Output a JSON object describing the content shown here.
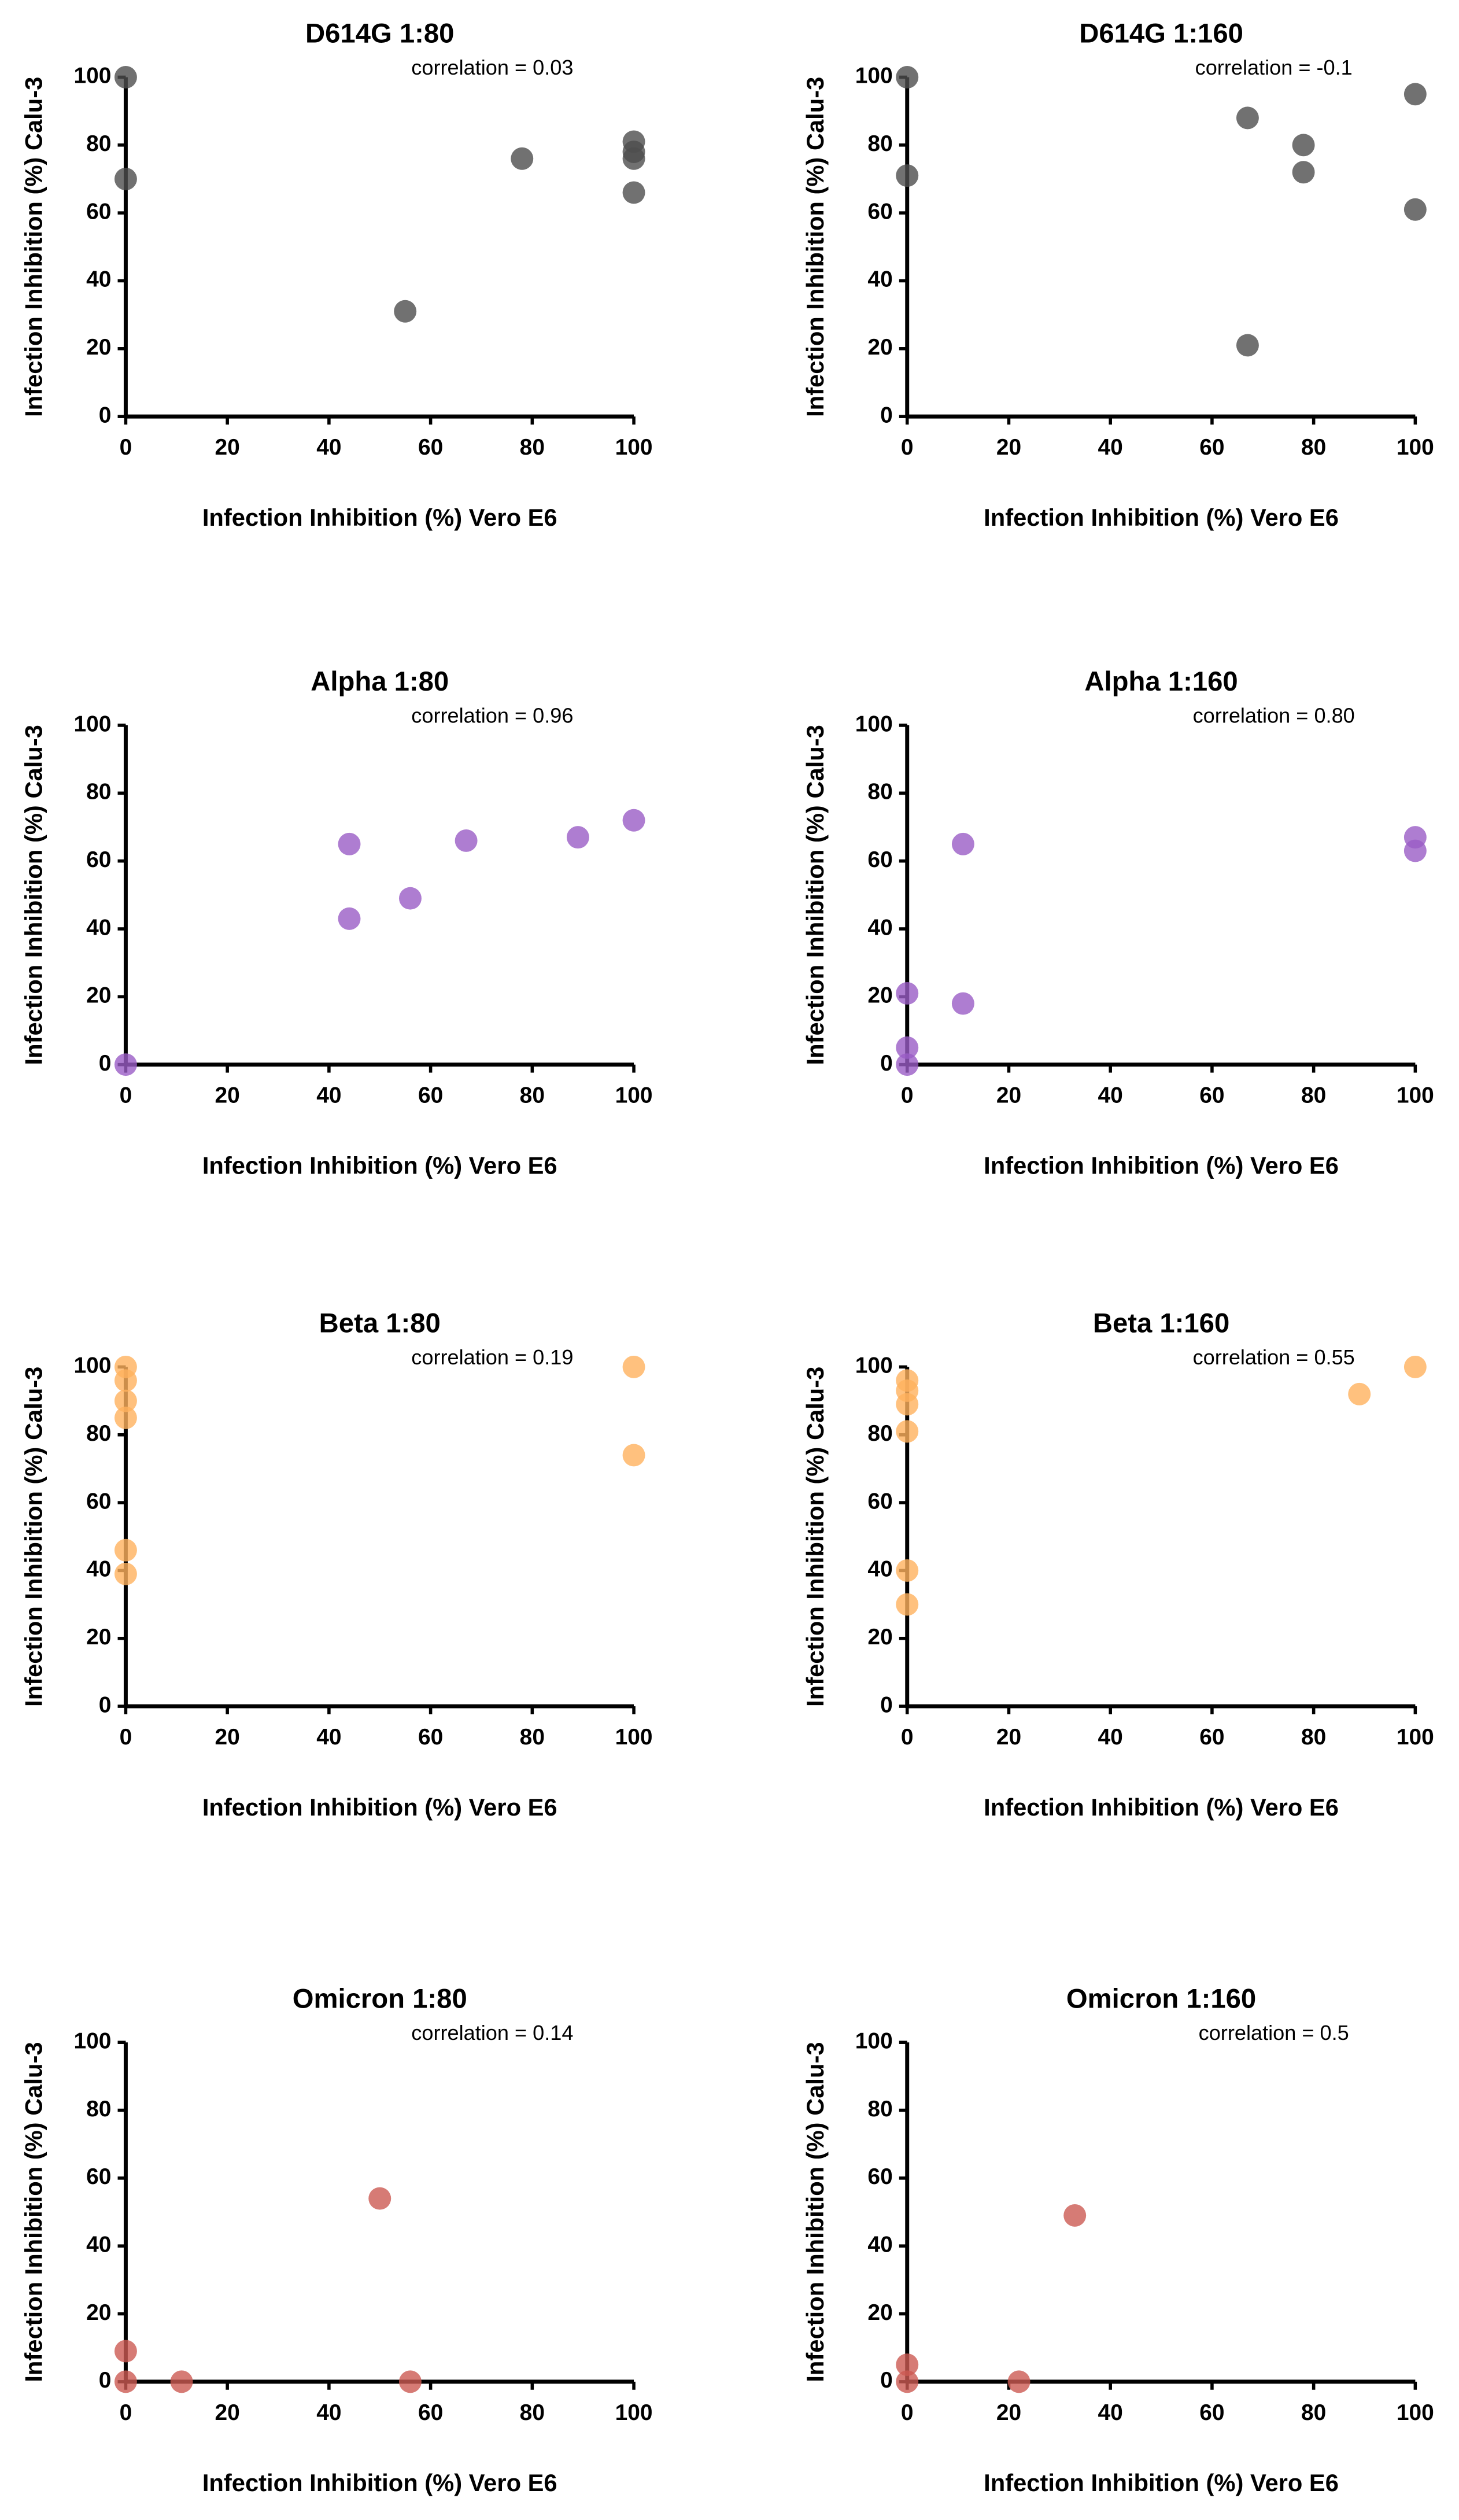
{
  "chart_data": [
    {
      "type": "scatter",
      "title": "D614G 1:80",
      "annotation": "correlation = 0.03",
      "x_label": "Infection Inhibition (%) Vero E6",
      "y_label": "Infection Inhibition (%) Calu-3",
      "xlim": [
        0,
        100
      ],
      "ylim": [
        0,
        100
      ],
      "xticks": [
        0,
        20,
        40,
        60,
        80,
        100
      ],
      "yticks": [
        0,
        20,
        40,
        60,
        80,
        100
      ],
      "series": [
        {
          "color": "#4d4d4d",
          "x": [
            0,
            0,
            55,
            78,
            100,
            100,
            100,
            100
          ],
          "values": [
            100,
            70,
            31,
            76,
            81,
            78,
            76,
            66
          ]
        }
      ]
    },
    {
      "type": "scatter",
      "title": "D614G 1:160",
      "annotation": "correlation = -0.1",
      "x_label": "Infection Inhibition (%) Vero E6",
      "y_label": "Infection Inhibition (%) Calu-3",
      "xlim": [
        0,
        100
      ],
      "ylim": [
        0,
        100
      ],
      "xticks": [
        0,
        20,
        40,
        60,
        80,
        100
      ],
      "yticks": [
        0,
        20,
        40,
        60,
        80,
        100
      ],
      "series": [
        {
          "color": "#4d4d4d",
          "x": [
            0,
            0,
            67,
            67,
            78,
            78,
            100,
            100
          ],
          "values": [
            100,
            71,
            88,
            21,
            80,
            72,
            95,
            61
          ]
        }
      ]
    },
    {
      "type": "scatter",
      "title": "Alpha 1:80",
      "annotation": "correlation = 0.96",
      "x_label": "Infection Inhibition (%) Vero E6",
      "y_label": "Infection Inhibition (%) Calu-3",
      "xlim": [
        0,
        100
      ],
      "ylim": [
        0,
        100
      ],
      "xticks": [
        0,
        20,
        40,
        60,
        80,
        100
      ],
      "yticks": [
        0,
        20,
        40,
        60,
        80,
        100
      ],
      "series": [
        {
          "color": "#9a5cc6",
          "x": [
            0,
            44,
            44,
            56,
            67,
            89,
            100
          ],
          "values": [
            0,
            65,
            43,
            49,
            66,
            67,
            72
          ]
        }
      ]
    },
    {
      "type": "scatter",
      "title": "Alpha 1:160",
      "annotation": "correlation = 0.80",
      "x_label": "Infection Inhibition (%) Vero E6",
      "y_label": "Infection Inhibition (%) Calu-3",
      "xlim": [
        0,
        100
      ],
      "ylim": [
        0,
        100
      ],
      "xticks": [
        0,
        20,
        40,
        60,
        80,
        100
      ],
      "yticks": [
        0,
        20,
        40,
        60,
        80,
        100
      ],
      "series": [
        {
          "color": "#9a5cc6",
          "x": [
            0,
            0,
            0,
            11,
            11,
            100,
            100
          ],
          "values": [
            21,
            5,
            0,
            65,
            18,
            67,
            63
          ]
        }
      ]
    },
    {
      "type": "scatter",
      "title": "Beta 1:80",
      "annotation": "correlation = 0.19",
      "x_label": "Infection Inhibition (%) Vero E6",
      "y_label": "Infection Inhibition (%) Calu-3",
      "xlim": [
        0,
        100
      ],
      "ylim": [
        0,
        100
      ],
      "xticks": [
        0,
        20,
        40,
        60,
        80,
        100
      ],
      "yticks": [
        0,
        20,
        40,
        60,
        80,
        100
      ],
      "series": [
        {
          "color": "#ffb15e",
          "x": [
            0,
            0,
            0,
            0,
            0,
            0,
            100,
            100
          ],
          "values": [
            100,
            96,
            90,
            85,
            46,
            39,
            100,
            74
          ]
        }
      ]
    },
    {
      "type": "scatter",
      "title": "Beta 1:160",
      "annotation": "correlation = 0.55",
      "x_label": "Infection Inhibition (%) Vero E6",
      "y_label": "Infection Inhibition (%) Calu-3",
      "xlim": [
        0,
        100
      ],
      "ylim": [
        0,
        100
      ],
      "xticks": [
        0,
        20,
        40,
        60,
        80,
        100
      ],
      "yticks": [
        0,
        20,
        40,
        60,
        80,
        100
      ],
      "series": [
        {
          "color": "#ffb15e",
          "x": [
            0,
            0,
            0,
            0,
            0,
            0,
            89,
            100
          ],
          "values": [
            96,
            93,
            89,
            81,
            40,
            30,
            92,
            100
          ]
        }
      ]
    },
    {
      "type": "scatter",
      "title": "Omicron 1:80",
      "annotation": "correlation = 0.14",
      "x_label": "Infection Inhibition (%) Vero E6",
      "y_label": "Infection Inhibition (%) Calu-3",
      "xlim": [
        0,
        100
      ],
      "ylim": [
        0,
        100
      ],
      "xticks": [
        0,
        20,
        40,
        60,
        80,
        100
      ],
      "yticks": [
        0,
        20,
        40,
        60,
        80,
        100
      ],
      "series": [
        {
          "color": "#cc5a52",
          "x": [
            0,
            0,
            11,
            50,
            56
          ],
          "values": [
            9,
            0,
            0,
            54,
            0
          ]
        }
      ]
    },
    {
      "type": "scatter",
      "title": "Omicron 1:160",
      "annotation": "correlation = 0.5",
      "x_label": "Infection Inhibition (%) Vero E6",
      "y_label": "Infection Inhibition (%) Calu-3",
      "xlim": [
        0,
        100
      ],
      "ylim": [
        0,
        100
      ],
      "xticks": [
        0,
        20,
        40,
        60,
        80,
        100
      ],
      "yticks": [
        0,
        20,
        40,
        60,
        80,
        100
      ],
      "series": [
        {
          "color": "#cc5a52",
          "x": [
            0,
            0,
            22,
            33
          ],
          "values": [
            5,
            0,
            0,
            49
          ]
        }
      ]
    }
  ]
}
